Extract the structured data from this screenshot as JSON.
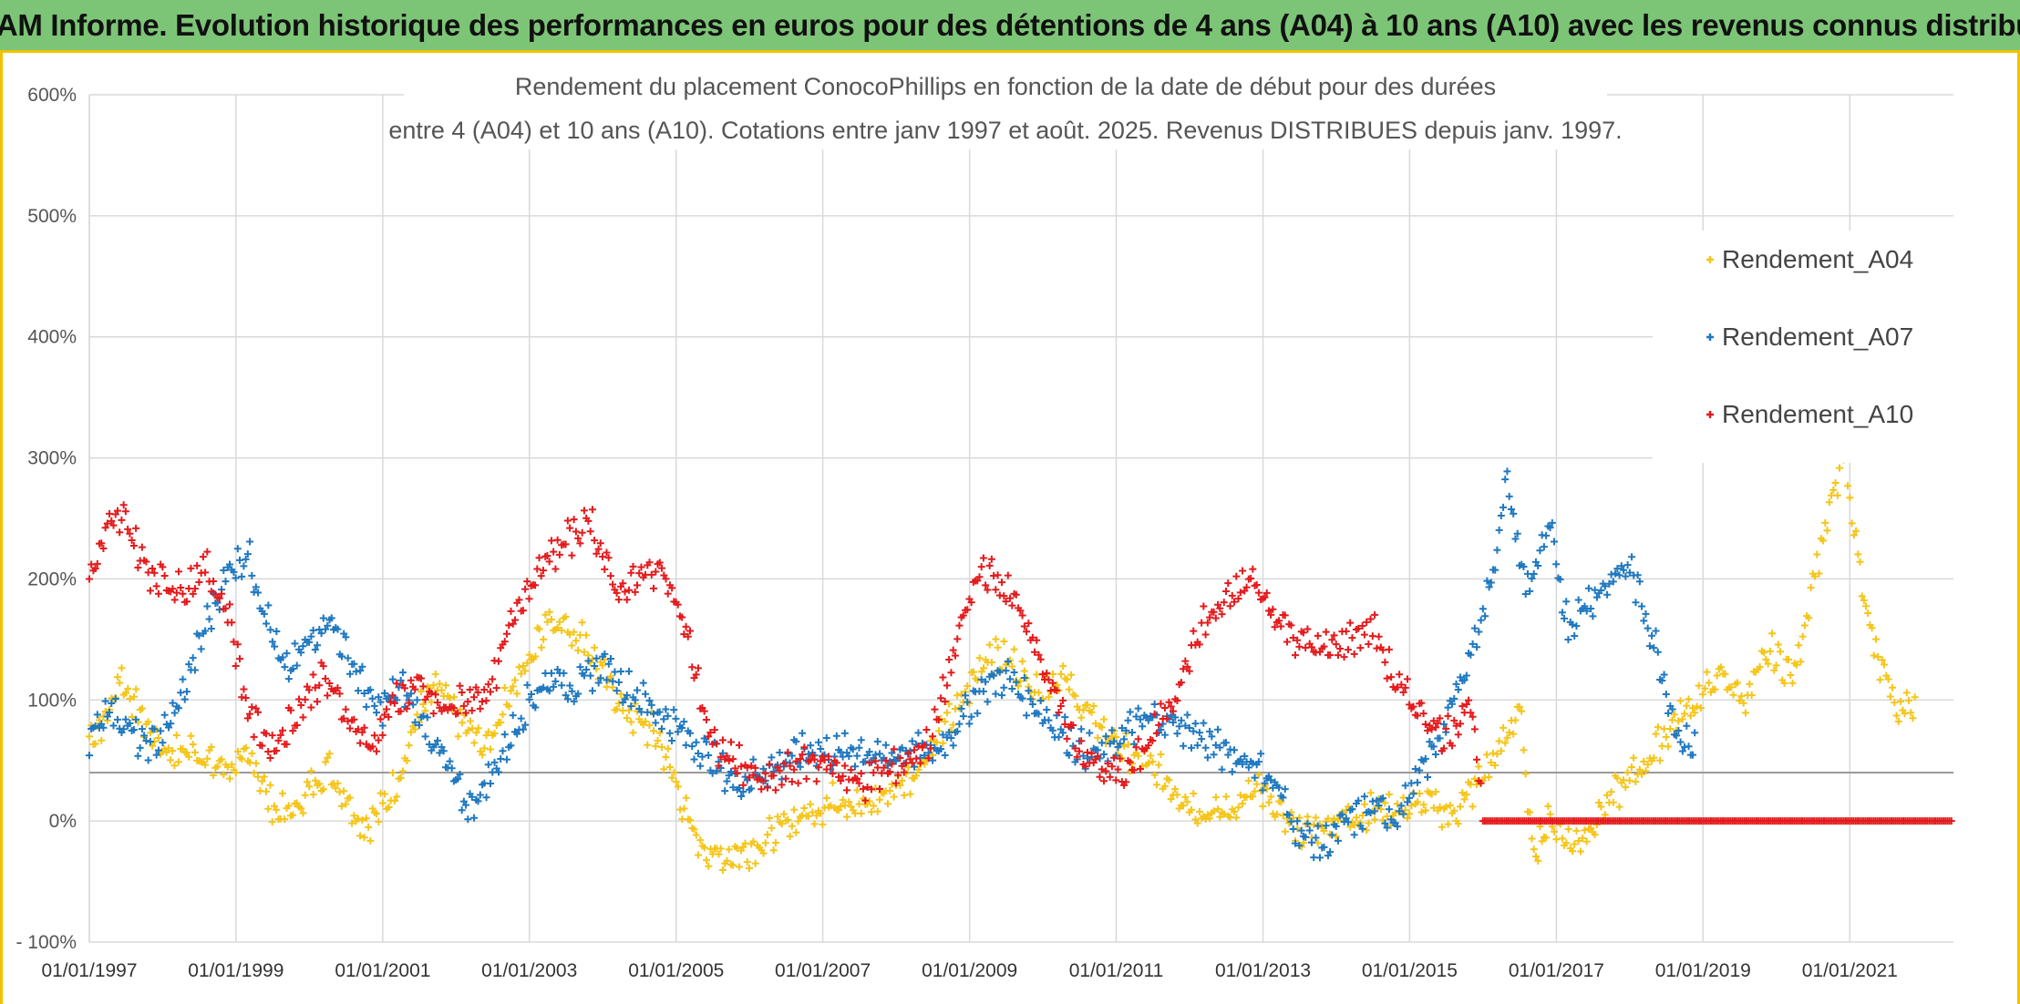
{
  "banner": {
    "title": "ADAM Informe. Evolution historique des performances en euros pour des détentions de 4 ans (A04) à 10 ans (A10) avec les revenus connus distribués"
  },
  "colors": {
    "banner_bg": "#7cc576",
    "accent_border": "#f2c200",
    "A04": "#f5c518",
    "A07": "#1f78c0",
    "A10": "#e41a1c"
  },
  "chart_data": {
    "type": "scatter",
    "title_lines": [
      "Rendement du placement ConocoPhillips en fonction de la date de début pour des durées",
      "entre 4 (A04) et 10 ans (A10). Cotations entre janv 1997 et août. 2025. Revenus DISTRIBUES depuis janv. 1997."
    ],
    "x_type": "date",
    "xlim": [
      "1997-01-01",
      "2022-06-01"
    ],
    "x_tick_labels": [
      "01/01/1997",
      "01/01/1999",
      "01/01/2001",
      "01/01/2003",
      "01/01/2005",
      "01/01/2007",
      "01/01/2009",
      "01/01/2011",
      "01/01/2013",
      "01/01/2015",
      "01/01/2017",
      "01/01/2019",
      "01/01/2021"
    ],
    "ylim": [
      -100,
      600
    ],
    "y_unit": "%",
    "y_tick_labels": [
      "- 100%",
      "0%",
      "100%",
      "200%",
      "300%",
      "400%",
      "500%",
      "600%"
    ],
    "grid": true,
    "reference_line_y": 40,
    "legend_position": "top-right",
    "series": [
      {
        "name": "Rendement_A04",
        "color": "#f5c518",
        "points": [
          [
            "1997-01-01",
            70
          ],
          [
            "1997-04-01",
            85
          ],
          [
            "1997-06-01",
            120
          ],
          [
            "1997-09-01",
            90
          ],
          [
            "1997-12-01",
            65
          ],
          [
            "1998-03-01",
            55
          ],
          [
            "1998-06-01",
            60
          ],
          [
            "1998-10-01",
            45
          ],
          [
            "1999-01-01",
            45
          ],
          [
            "1999-04-01",
            50
          ],
          [
            "1999-07-01",
            10
          ],
          [
            "1999-10-01",
            5
          ],
          [
            "2000-01-01",
            25
          ],
          [
            "2000-04-01",
            45
          ],
          [
            "2000-07-01",
            20
          ],
          [
            "2000-10-01",
            -5
          ],
          [
            "2001-01-01",
            10
          ],
          [
            "2001-04-01",
            40
          ],
          [
            "2001-07-01",
            90
          ],
          [
            "2001-10-01",
            110
          ],
          [
            "2002-02-01",
            80
          ],
          [
            "2002-06-01",
            60
          ],
          [
            "2002-10-01",
            110
          ],
          [
            "2003-01-01",
            130
          ],
          [
            "2003-04-01",
            170
          ],
          [
            "2003-07-01",
            160
          ],
          [
            "2003-10-01",
            150
          ],
          [
            "2004-01-01",
            120
          ],
          [
            "2004-05-01",
            90
          ],
          [
            "2004-10-01",
            70
          ],
          [
            "2005-01-01",
            30
          ],
          [
            "2005-04-01",
            -15
          ],
          [
            "2005-08-01",
            -30
          ],
          [
            "2005-12-01",
            -25
          ],
          [
            "2006-04-01",
            -15
          ],
          [
            "2006-08-01",
            0
          ],
          [
            "2006-12-01",
            10
          ],
          [
            "2007-04-01",
            20
          ],
          [
            "2007-08-01",
            10
          ],
          [
            "2007-12-01",
            25
          ],
          [
            "2008-04-01",
            40
          ],
          [
            "2008-08-01",
            70
          ],
          [
            "2008-12-01",
            100
          ],
          [
            "2009-04-01",
            140
          ],
          [
            "2009-08-01",
            130
          ],
          [
            "2009-12-01",
            110
          ],
          [
            "2010-04-01",
            120
          ],
          [
            "2010-08-01",
            90
          ],
          [
            "2010-12-01",
            70
          ],
          [
            "2011-04-01",
            50
          ],
          [
            "2011-08-01",
            40
          ],
          [
            "2011-12-01",
            20
          ],
          [
            "2012-04-01",
            5
          ],
          [
            "2012-08-01",
            10
          ],
          [
            "2012-12-01",
            25
          ],
          [
            "2013-04-01",
            5
          ],
          [
            "2013-08-01",
            -10
          ],
          [
            "2013-12-01",
            0
          ],
          [
            "2014-04-01",
            5
          ],
          [
            "2014-08-01",
            10
          ],
          [
            "2014-12-01",
            10
          ],
          [
            "2015-04-01",
            15
          ],
          [
            "2015-08-01",
            5
          ],
          [
            "2015-12-01",
            30
          ],
          [
            "2016-04-01",
            60
          ],
          [
            "2016-07-01",
            95
          ],
          [
            "2016-09-01",
            -25
          ],
          [
            "2016-12-01",
            0
          ],
          [
            "2017-04-01",
            -20
          ],
          [
            "2017-08-01",
            5
          ],
          [
            "2017-12-01",
            30
          ],
          [
            "2018-04-01",
            50
          ],
          [
            "2018-08-01",
            80
          ],
          [
            "2018-12-01",
            100
          ],
          [
            "2019-04-01",
            120
          ],
          [
            "2019-08-01",
            100
          ],
          [
            "2019-12-01",
            140
          ],
          [
            "2020-04-01",
            120
          ],
          [
            "2020-07-01",
            200
          ],
          [
            "2020-10-01",
            260
          ],
          [
            "2020-12-01",
            300
          ],
          [
            "2021-02-01",
            230
          ],
          [
            "2021-05-01",
            140
          ],
          [
            "2021-09-01",
            90
          ],
          [
            "2021-12-01",
            100
          ]
        ]
      },
      {
        "name": "Rendement_A07",
        "color": "#1f78c0",
        "points": [
          [
            "1997-01-01",
            65
          ],
          [
            "1997-04-01",
            95
          ],
          [
            "1997-07-01",
            80
          ],
          [
            "1997-10-01",
            60
          ],
          [
            "1998-01-01",
            70
          ],
          [
            "1998-04-01",
            100
          ],
          [
            "1998-08-01",
            160
          ],
          [
            "1998-12-01",
            210
          ],
          [
            "1999-03-01",
            220
          ],
          [
            "1999-06-01",
            170
          ],
          [
            "1999-09-01",
            120
          ],
          [
            "1999-12-01",
            140
          ],
          [
            "2000-04-01",
            170
          ],
          [
            "2000-08-01",
            130
          ],
          [
            "2000-12-01",
            90
          ],
          [
            "2001-04-01",
            110
          ],
          [
            "2001-08-01",
            80
          ],
          [
            "2001-12-01",
            40
          ],
          [
            "2002-03-01",
            10
          ],
          [
            "2002-06-01",
            30
          ],
          [
            "2002-10-01",
            70
          ],
          [
            "2003-01-01",
            100
          ],
          [
            "2003-05-01",
            120
          ],
          [
            "2003-09-01",
            110
          ],
          [
            "2004-01-01",
            130
          ],
          [
            "2004-05-01",
            110
          ],
          [
            "2004-10-01",
            90
          ],
          [
            "2005-03-01",
            70
          ],
          [
            "2005-07-01",
            50
          ],
          [
            "2005-11-01",
            30
          ],
          [
            "2006-03-01",
            40
          ],
          [
            "2006-07-01",
            50
          ],
          [
            "2006-11-01",
            60
          ],
          [
            "2007-03-01",
            55
          ],
          [
            "2007-07-01",
            60
          ],
          [
            "2007-11-01",
            50
          ],
          [
            "2008-03-01",
            60
          ],
          [
            "2008-07-01",
            55
          ],
          [
            "2008-11-01",
            80
          ],
          [
            "2009-03-01",
            110
          ],
          [
            "2009-07-01",
            120
          ],
          [
            "2009-11-01",
            100
          ],
          [
            "2010-03-01",
            80
          ],
          [
            "2010-07-01",
            60
          ],
          [
            "2010-11-01",
            55
          ],
          [
            "2011-03-01",
            75
          ],
          [
            "2011-07-01",
            85
          ],
          [
            "2011-11-01",
            80
          ],
          [
            "2012-03-01",
            70
          ],
          [
            "2012-07-01",
            55
          ],
          [
            "2012-11-01",
            50
          ],
          [
            "2013-03-01",
            30
          ],
          [
            "2013-07-01",
            -10
          ],
          [
            "2013-11-01",
            -20
          ],
          [
            "2014-03-01",
            0
          ],
          [
            "2014-07-01",
            10
          ],
          [
            "2014-11-01",
            5
          ],
          [
            "2015-03-01",
            40
          ],
          [
            "2015-07-01",
            80
          ],
          [
            "2015-11-01",
            140
          ],
          [
            "2016-02-01",
            190
          ],
          [
            "2016-05-01",
            280
          ],
          [
            "2016-08-01",
            190
          ],
          [
            "2016-12-01",
            240
          ],
          [
            "2017-03-01",
            160
          ],
          [
            "2017-06-01",
            180
          ],
          [
            "2017-10-01",
            200
          ],
          [
            "2018-01-01",
            210
          ],
          [
            "2018-05-01",
            150
          ],
          [
            "2018-09-01",
            70
          ],
          [
            "2018-12-01",
            60
          ]
        ]
      },
      {
        "name": "Rendement_A10",
        "color": "#e41a1c",
        "points": [
          [
            "1997-01-01",
            200
          ],
          [
            "1997-04-01",
            240
          ],
          [
            "1997-07-01",
            250
          ],
          [
            "1997-10-01",
            210
          ],
          [
            "1998-01-01",
            200
          ],
          [
            "1998-04-01",
            190
          ],
          [
            "1998-08-01",
            210
          ],
          [
            "1998-12-01",
            170
          ],
          [
            "1999-03-01",
            90
          ],
          [
            "1999-07-01",
            60
          ],
          [
            "1999-11-01",
            90
          ],
          [
            "2000-03-01",
            120
          ],
          [
            "2000-07-01",
            90
          ],
          [
            "2000-11-01",
            60
          ],
          [
            "2001-03-01",
            100
          ],
          [
            "2001-07-01",
            110
          ],
          [
            "2001-11-01",
            90
          ],
          [
            "2002-03-01",
            100
          ],
          [
            "2002-07-01",
            110
          ],
          [
            "2002-11-01",
            180
          ],
          [
            "2003-03-01",
            210
          ],
          [
            "2003-07-01",
            230
          ],
          [
            "2003-11-01",
            250
          ],
          [
            "2004-03-01",
            190
          ],
          [
            "2004-07-01",
            200
          ],
          [
            "2004-11-01",
            210
          ],
          [
            "2005-03-01",
            150
          ],
          [
            "2005-07-01",
            60
          ],
          [
            "2005-11-01",
            50
          ],
          [
            "2006-03-01",
            30
          ],
          [
            "2006-07-01",
            40
          ],
          [
            "2006-11-01",
            50
          ],
          [
            "2007-03-01",
            45
          ],
          [
            "2007-07-01",
            30
          ],
          [
            "2007-11-01",
            40
          ],
          [
            "2008-03-01",
            50
          ],
          [
            "2008-07-01",
            70
          ],
          [
            "2008-11-01",
            150
          ],
          [
            "2009-03-01",
            210
          ],
          [
            "2009-07-01",
            190
          ],
          [
            "2009-11-01",
            160
          ],
          [
            "2010-03-01",
            100
          ],
          [
            "2010-07-01",
            60
          ],
          [
            "2010-11-01",
            40
          ],
          [
            "2011-03-01",
            40
          ],
          [
            "2011-07-01",
            70
          ],
          [
            "2011-11-01",
            110
          ],
          [
            "2012-03-01",
            160
          ],
          [
            "2012-07-01",
            180
          ],
          [
            "2012-11-01",
            200
          ],
          [
            "2013-03-01",
            170
          ],
          [
            "2013-07-01",
            150
          ],
          [
            "2013-11-01",
            140
          ],
          [
            "2014-03-01",
            150
          ],
          [
            "2014-07-01",
            160
          ],
          [
            "2014-11-01",
            110
          ],
          [
            "2015-03-01",
            90
          ],
          [
            "2015-07-01",
            70
          ],
          [
            "2015-11-01",
            100
          ],
          [
            "2016-01-01",
            0
          ],
          [
            "2017-01-01",
            0
          ],
          [
            "2018-01-01",
            0
          ],
          [
            "2019-01-01",
            0
          ],
          [
            "2020-01-01",
            0
          ],
          [
            "2021-01-01",
            0
          ],
          [
            "2022-01-01",
            0
          ],
          [
            "2022-06-01",
            0
          ]
        ]
      }
    ]
  }
}
